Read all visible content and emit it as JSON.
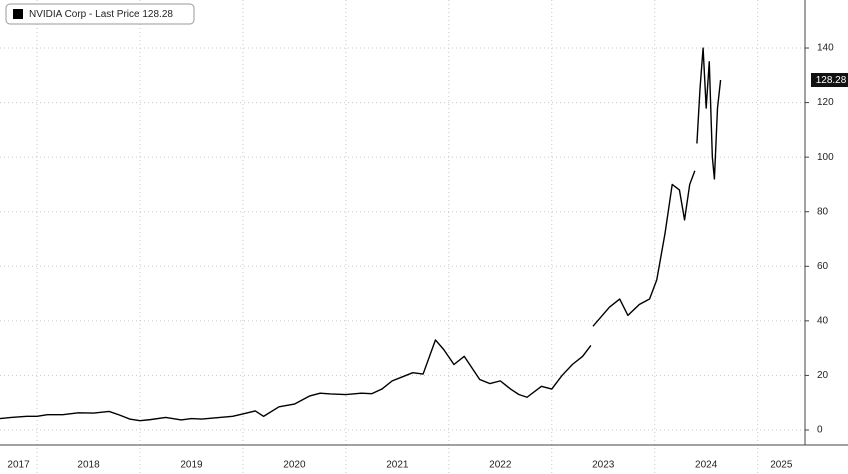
{
  "chart_data": {
    "type": "line",
    "x": [
      2017.64,
      2017.75,
      2017.9,
      2018.0,
      2018.1,
      2018.25,
      2018.4,
      2018.55,
      2018.7,
      2018.8,
      2018.9,
      2019.0,
      2019.1,
      2019.25,
      2019.4,
      2019.5,
      2019.6,
      2019.75,
      2019.9,
      2020.0,
      2020.12,
      2020.2,
      2020.35,
      2020.5,
      2020.65,
      2020.75,
      2020.85,
      2021.0,
      2021.15,
      2021.25,
      2021.35,
      2021.45,
      2021.55,
      2021.65,
      2021.75,
      2021.87,
      2021.95,
      2022.05,
      2022.15,
      2022.3,
      2022.4,
      2022.5,
      2022.6,
      2022.68,
      2022.76,
      2022.9,
      2023.0,
      2023.1,
      2023.2,
      2023.3,
      2023.38,
      2023.39,
      2023.4,
      2023.56,
      2023.66,
      2023.74,
      2023.85,
      2023.95,
      2024.02,
      2024.1,
      2024.17,
      2024.24,
      2024.29,
      2024.34,
      2024.39,
      2024.4,
      2024.41,
      2024.44,
      2024.47,
      2024.5,
      2024.53,
      2024.56,
      2024.58,
      2024.61,
      2024.64
    ],
    "series": [
      {
        "name": "NVIDIA Corp - Last Price 128.28",
        "color": "#000000",
        "values": [
          4.2,
          4.6,
          5.0,
          5.0,
          5.6,
          5.6,
          6.3,
          6.2,
          6.8,
          5.5,
          4.0,
          3.4,
          3.8,
          4.6,
          3.7,
          4.2,
          4.0,
          4.5,
          5.0,
          5.9,
          7.0,
          5.0,
          8.5,
          9.5,
          12.5,
          13.5,
          13.2,
          13.0,
          13.5,
          13.3,
          15.0,
          18.0,
          19.5,
          21.0,
          20.5,
          33.0,
          29.5,
          24.0,
          27.0,
          18.5,
          17.0,
          18.0,
          15.0,
          13.0,
          12.0,
          16.0,
          15.0,
          20.0,
          24.0,
          27.0,
          31.0,
          null,
          38.0,
          45.0,
          48.0,
          42.0,
          46.0,
          48.0,
          55.0,
          72.0,
          90.0,
          88.0,
          77.0,
          90.0,
          95.0,
          null,
          105.0,
          125.0,
          140.0,
          118.0,
          135.0,
          100.0,
          92.0,
          118.0,
          128.28
        ]
      }
    ],
    "last_price": 128.28,
    "xlim": [
      2017.64,
      2025.46
    ],
    "xticks": [
      2017,
      2018,
      2019,
      2020,
      2021,
      2022,
      2023,
      2024,
      2025
    ],
    "ylim": [
      -5.5,
      157.6
    ],
    "yticks": [
      0,
      20,
      40,
      60,
      80,
      100,
      120,
      140
    ],
    "grid": true
  }
}
